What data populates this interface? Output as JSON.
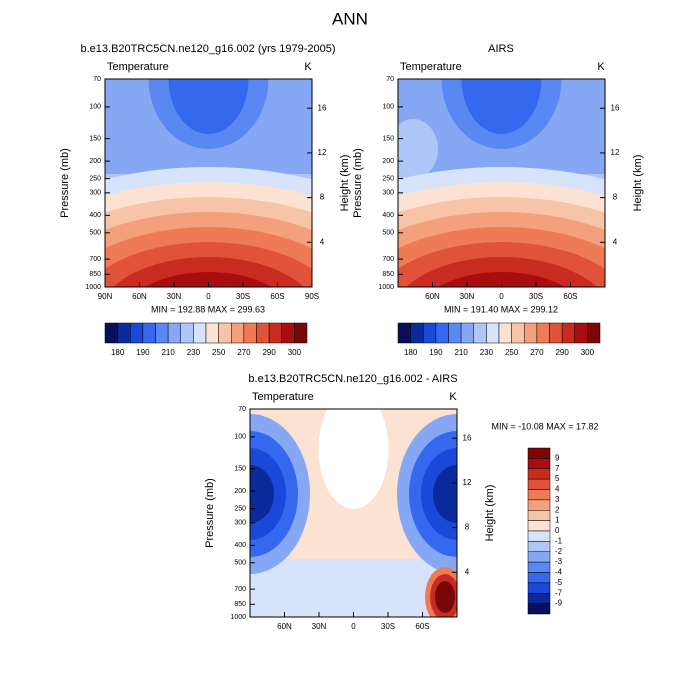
{
  "title": "ANN",
  "panels": [
    {
      "subtitle": "b.e13.B20TRC5CN.ne120_g16.002 (yrs 1979-2005)",
      "left_label": "Temperature",
      "right_label": "K",
      "y_label": "Pressure (mb)",
      "y2_label": "Height (km)",
      "ylim": [
        1000,
        70
      ],
      "yticks": [
        70,
        100,
        150,
        200,
        250,
        300,
        400,
        500,
        700,
        850,
        1000
      ],
      "y2ticks": [
        4,
        8,
        12,
        16
      ],
      "xlim": [
        90,
        -90
      ],
      "xticks": [
        {
          "value": 90,
          "label": "90N"
        },
        {
          "value": 60,
          "label": "60N"
        },
        {
          "value": 30,
          "label": "30N"
        },
        0,
        {
          "value": -30,
          "label": "30S"
        },
        {
          "value": -60,
          "label": "60S"
        },
        {
          "value": -90,
          "label": "90S"
        }
      ],
      "stats": "MIN = 192.88  MAX = 299.63",
      "colorbar": {
        "orientation": "horizontal",
        "labels": [
          180,
          190,
          210,
          230,
          250,
          270,
          290,
          300
        ],
        "colors": [
          "#08105e",
          "#0a2a9c",
          "#1a48d8",
          "#3468ee",
          "#5a88f2",
          "#86a8f4",
          "#aec6f8",
          "#d6e3fb",
          "#fbe2d2",
          "#f8c4a8",
          "#f4a07c",
          "#ee7a56",
          "#e0523a",
          "#c82c20",
          "#a80e10",
          "#7a0608"
        ]
      }
    },
    {
      "subtitle": "AIRS",
      "left_label": "Temperature",
      "right_label": "K",
      "y_label": "Pressure (mb)",
      "y2_label": "Height (km)",
      "ylim": [
        1000,
        70
      ],
      "yticks": [
        70,
        100,
        150,
        200,
        250,
        300,
        400,
        500,
        700,
        850,
        1000
      ],
      "y2ticks": [
        4,
        8,
        12,
        16
      ],
      "xlim": [
        90,
        -90
      ],
      "xticks": [
        {
          "value": 60,
          "label": "60N"
        },
        {
          "value": 30,
          "label": "30N"
        },
        0,
        {
          "value": -30,
          "label": "30S"
        },
        {
          "value": -60,
          "label": "60S"
        }
      ],
      "stats": "MIN = 191.40  MAX = 299.12",
      "colorbar": {
        "orientation": "horizontal",
        "labels": [
          180,
          190,
          210,
          230,
          250,
          270,
          290,
          300
        ],
        "colors": [
          "#08105e",
          "#0a2a9c",
          "#1a48d8",
          "#3468ee",
          "#5a88f2",
          "#86a8f4",
          "#aec6f8",
          "#d6e3fb",
          "#fbe2d2",
          "#f8c4a8",
          "#f4a07c",
          "#ee7a56",
          "#e0523a",
          "#c82c20",
          "#a80e10",
          "#7a0608"
        ]
      }
    },
    {
      "subtitle": "b.e13.B20TRC5CN.ne120_g16.002 - AIRS",
      "left_label": "Temperature",
      "right_label": "K",
      "y_label": "Pressure (mb)",
      "y2_label": "Height (km)",
      "ylim": [
        1000,
        70
      ],
      "yticks": [
        70,
        100,
        150,
        200,
        250,
        300,
        400,
        500,
        700,
        850,
        1000
      ],
      "y2ticks": [
        4,
        8,
        12,
        16
      ],
      "xlim": [
        90,
        -90
      ],
      "xticks": [
        {
          "value": 60,
          "label": "60N"
        },
        {
          "value": 30,
          "label": "30N"
        },
        0,
        {
          "value": -30,
          "label": "30S"
        },
        {
          "value": -60,
          "label": "60S"
        }
      ],
      "stats": "MIN = -10.08  MAX =  17.82",
      "colorbar": {
        "orientation": "vertical",
        "labels": [
          9,
          7,
          5,
          4,
          3,
          2,
          1,
          0,
          -1,
          -2,
          -3,
          -4,
          -5,
          -7,
          -9
        ],
        "colors": [
          "#7a0608",
          "#a80e10",
          "#c82c20",
          "#e0523a",
          "#ee7a56",
          "#f4a07c",
          "#f8c4a8",
          "#fbe2d2",
          "#d6e3fb",
          "#aec6f8",
          "#86a8f4",
          "#5a88f2",
          "#3468ee",
          "#1a48d8",
          "#0a2a9c",
          "#08105e"
        ]
      }
    }
  ]
}
